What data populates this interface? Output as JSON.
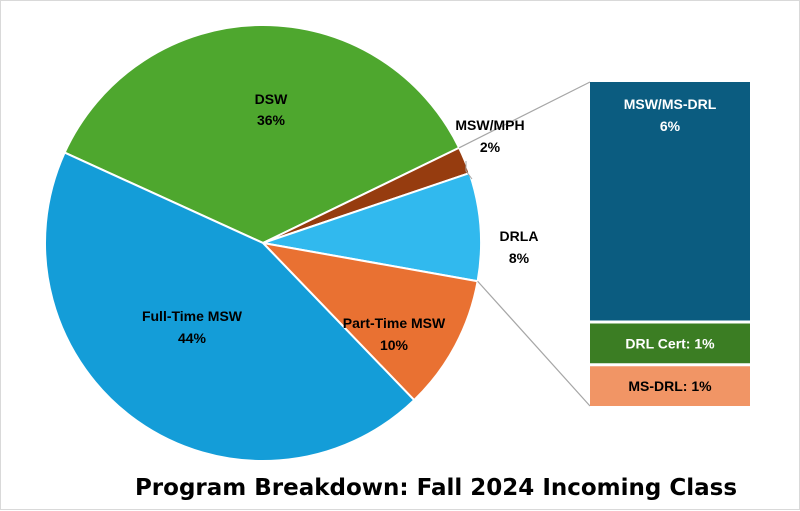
{
  "chart_data": {
    "type": "bar-of-pie",
    "title": "Program Breakdown: Fall 2024 Incoming Class",
    "pie": [
      {
        "name": "DSW",
        "value": 36,
        "label": "36%",
        "color": "#4ea72e"
      },
      {
        "name": "MSW/MPH",
        "value": 2,
        "label": "2%",
        "color": "#963c0f"
      },
      {
        "name": "DRLA",
        "value": 8,
        "label": "8%",
        "color": "#31b9ee"
      },
      {
        "name": "Part-Time MSW",
        "value": 10,
        "label": "10%",
        "color": "#e97132"
      },
      {
        "name": "Full-Time MSW",
        "value": 44,
        "label": "44%",
        "color": "#149dd8"
      }
    ],
    "bar": [
      {
        "name": "MSW/MS-DRL",
        "value": 6,
        "label": "6%",
        "color": "#0b5c80"
      },
      {
        "name": "DRL Cert",
        "value": 1,
        "label": "1%",
        "color": "#3b7d23"
      },
      {
        "name": "MS-DRL",
        "value": 1,
        "label": "1%",
        "color": "#f19565"
      }
    ]
  }
}
